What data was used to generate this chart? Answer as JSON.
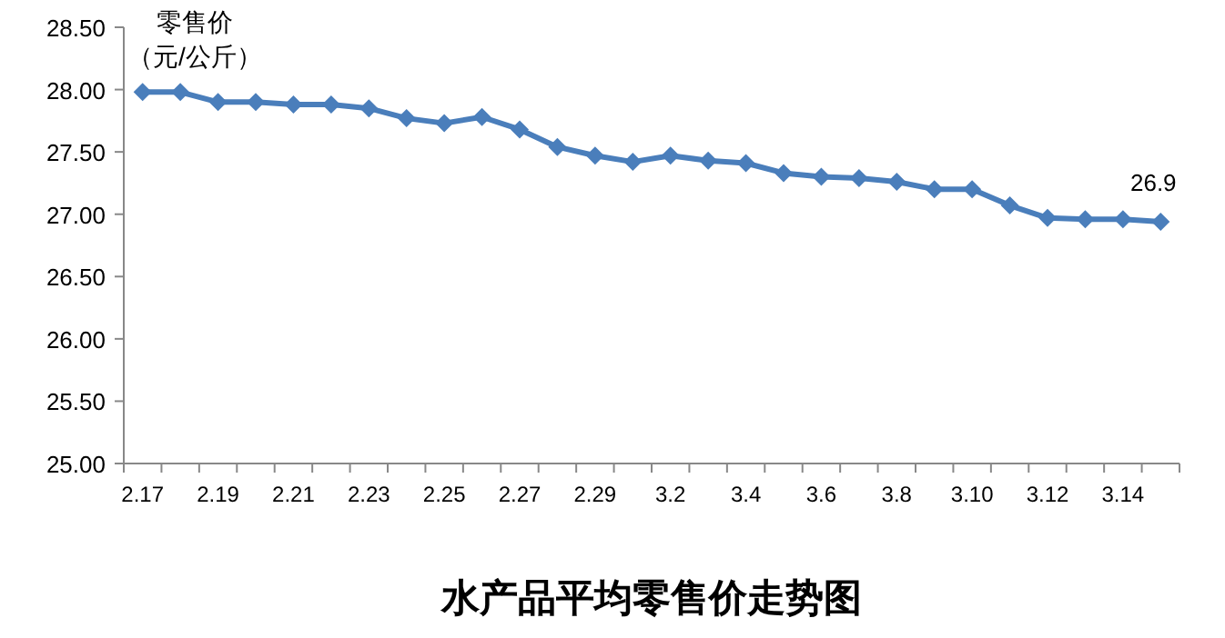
{
  "chart_data": {
    "type": "line",
    "title": "水产品平均零售价走势图",
    "ylabel": "零售价（元/公斤）",
    "categories": [
      "2.17",
      null,
      "2.19",
      null,
      "2.21",
      null,
      "2.23",
      null,
      "2.25",
      null,
      "2.27",
      null,
      "2.29",
      null,
      "3.2",
      null,
      "3.4",
      null,
      "3.6",
      null,
      "3.8",
      null,
      "3.10",
      null,
      "3.12",
      null,
      "3.14",
      null
    ],
    "series": [
      {
        "color": "#4a7ebb",
        "values": [
          27.98,
          27.98,
          27.9,
          27.9,
          27.88,
          27.88,
          27.85,
          27.77,
          27.73,
          27.78,
          27.68,
          27.54,
          27.47,
          27.42,
          27.47,
          27.43,
          27.41,
          27.33,
          27.3,
          27.29,
          27.26,
          27.2,
          27.2,
          27.07,
          26.97,
          26.96,
          26.96,
          26.94
        ],
        "value_labels": [
          null,
          null,
          null,
          null,
          null,
          null,
          null,
          null,
          null,
          null,
          null,
          null,
          null,
          null,
          null,
          null,
          null,
          null,
          null,
          null,
          null,
          null,
          null,
          null,
          null,
          null,
          null,
          "26.9"
        ]
      }
    ],
    "ylim": [
      25,
      28.5
    ],
    "yticks": [
      {
        "value": 25,
        "label": "25.00"
      },
      {
        "value": 25.5,
        "label": "25.50"
      },
      {
        "value": 26,
        "label": "26.00"
      },
      {
        "value": 26.5,
        "label": "26.50"
      },
      {
        "value": 27,
        "label": "27.00"
      },
      {
        "value": 27.5,
        "label": "27.50"
      },
      {
        "value": 28,
        "label": "28.00"
      },
      {
        "value": 28.5,
        "label": "28.50"
      }
    ],
    "marker": "diamond",
    "line_style": "solid",
    "grid": false
  }
}
